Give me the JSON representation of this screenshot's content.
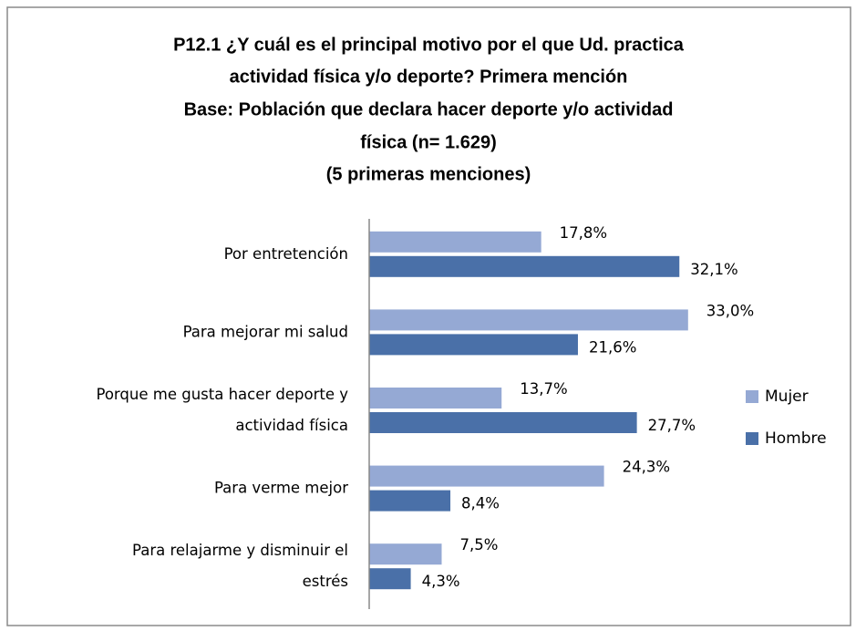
{
  "chart_data": {
    "type": "bar",
    "orientation": "horizontal",
    "title": [
      "P12.1 ¿Y cuál es el principal motivo por el que Ud. practica",
      "actividad física y/o deporte? Primera mención",
      "Base: Población que declara hacer deporte y/o actividad",
      "física (n= 1.629)",
      "(5 primeras menciones)"
    ],
    "categories": [
      "Por entretención",
      "Para mejorar mi salud",
      "Porque me gusta hacer deporte y actividad física",
      "Para verme mejor",
      "Para relajarme y disminuir el estrés"
    ],
    "series": [
      {
        "name": "Mujer",
        "color": "#95a9d4",
        "values": [
          17.8,
          33.0,
          13.7,
          24.3,
          7.5
        ],
        "value_labels": [
          "17,8%",
          "33,0%",
          "13,7%",
          "24,3%",
          "7,5%"
        ]
      },
      {
        "name": "Hombre",
        "color": "#4a70a8",
        "values": [
          32.1,
          21.6,
          27.7,
          8.4,
          4.3
        ],
        "value_labels": [
          "32,1%",
          "21,6%",
          "27,7%",
          "8,4%",
          "4,3%"
        ]
      }
    ],
    "xlim": [
      0,
      35
    ],
    "legend": "right"
  }
}
